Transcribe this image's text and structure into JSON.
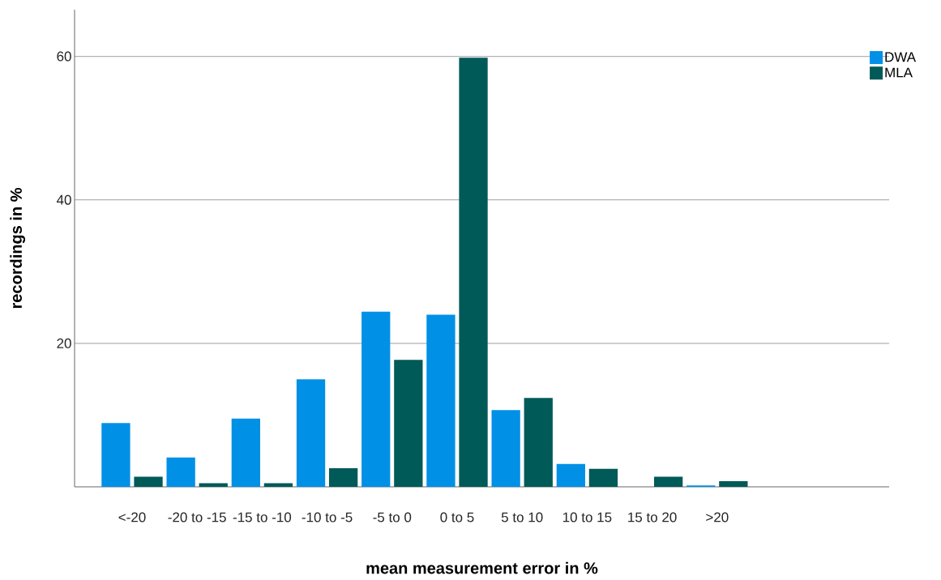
{
  "chart_data": {
    "type": "bar",
    "xlabel": "mean measurement error in %",
    "ylabel": "recordings in %",
    "categories": [
      "<-20",
      "-20 to -15",
      "-15 to -10",
      "-10 to -5",
      "-5 to 0",
      "0 to 5",
      "5 to 10",
      "10 to 15",
      "15 to 20",
      ">20"
    ],
    "series": [
      {
        "name": "DWA",
        "color": "#0090e6",
        "values": [
          8.9,
          4.1,
          9.5,
          15.0,
          24.4,
          24.0,
          10.7,
          3.2,
          0,
          0.2
        ]
      },
      {
        "name": "MLA",
        "color": "#005a58",
        "values": [
          1.4,
          0.5,
          0.5,
          2.6,
          17.7,
          59.8,
          12.4,
          2.5,
          1.4,
          0.8
        ]
      }
    ],
    "ylim": [
      0,
      66.5
    ],
    "yticks": [
      20,
      40,
      60
    ],
    "grid": "y",
    "legend": "top right"
  }
}
